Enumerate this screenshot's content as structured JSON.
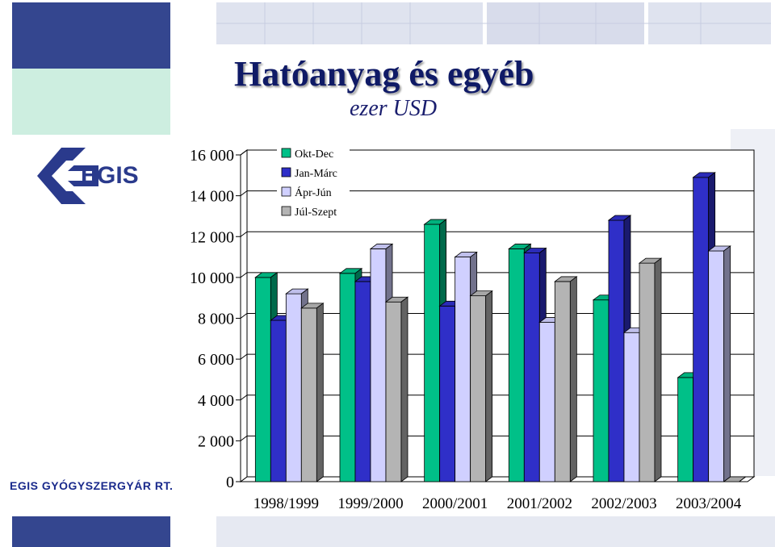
{
  "slide": {
    "title": "Hatóanyag és egyéb",
    "subtitle": "ezer USD",
    "logo_text": "EGIS",
    "company": "EGIS GYÓGYSZERGYÁR RT."
  },
  "colors": {
    "brand_blue": "#2a3a8c",
    "mint": "#c9eadb",
    "title_color": "#0f1a66"
  },
  "chart_data": {
    "type": "bar",
    "categories": [
      "1998/1999",
      "1999/2000",
      "2000/2001",
      "2001/2002",
      "2002/2003",
      "2003/2004"
    ],
    "series": [
      {
        "name": "Okt-Dec",
        "color": "#00c088",
        "values": [
          10000,
          10200,
          12600,
          11400,
          8900,
          5100
        ]
      },
      {
        "name": "Jan-Márc",
        "color": "#2f2fc8",
        "values": [
          7900,
          9800,
          8600,
          11200,
          12800,
          14900
        ]
      },
      {
        "name": "Ápr-Jún",
        "color": "#d0d0ff",
        "values": [
          9200,
          11400,
          11000,
          7800,
          7300,
          11300
        ]
      },
      {
        "name": "Júl-Szept",
        "color": "#b4b4b4",
        "values": [
          8500,
          8800,
          9100,
          9800,
          10700,
          0
        ]
      }
    ],
    "ylim": [
      0,
      16000
    ],
    "yticks": [
      "0",
      "2 000",
      "4 000",
      "6 000",
      "8 000",
      "10 000",
      "12 000",
      "14 000",
      "16 000"
    ],
    "grid": true,
    "legend_position": "top-left",
    "style": "3d"
  }
}
